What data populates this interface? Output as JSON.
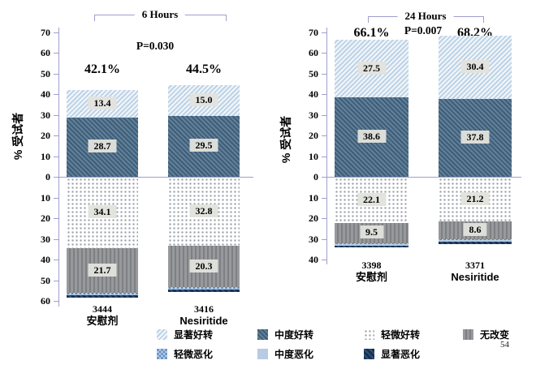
{
  "page_number": "54",
  "chart_data": {
    "type": "bar",
    "subtype": "diverging_stacked_bar",
    "ylabel": "% 受试者",
    "grid": false,
    "legend_position": "bottom",
    "panels": [
      {
        "title": "6 Hours",
        "p_value": "P=0.030",
        "axis": {
          "up_max": 70,
          "down_max": 60,
          "step": 10
        },
        "bars": [
          {
            "n": "3444",
            "group": "安慰剂",
            "total_improved": "42.1%",
            "up": [
              {
                "name": "中度好转",
                "value": 28.7,
                "label": "28.7"
              },
              {
                "name": "显著好转",
                "value": 13.4,
                "label": "13.4"
              }
            ],
            "down": [
              {
                "name": "轻微好转",
                "value": 34.1,
                "label": "34.1"
              },
              {
                "name": "无改变",
                "value": 21.7,
                "label": "21.7"
              },
              {
                "name": "轻微恶化",
                "value": 0.5
              },
              {
                "name": "中度恶化",
                "value": 0.5
              },
              {
                "name": "显著恶化",
                "value": 1.0
              }
            ]
          },
          {
            "n": "3416",
            "group": "Nesiritide",
            "total_improved": "44.5%",
            "up": [
              {
                "name": "中度好转",
                "value": 29.5,
                "label": "29.5"
              },
              {
                "name": "显著好转",
                "value": 15.0,
                "label": "15.0"
              }
            ],
            "down": [
              {
                "name": "轻微好转",
                "value": 32.8,
                "label": "32.8"
              },
              {
                "name": "无改变",
                "value": 20.3,
                "label": "20.3"
              },
              {
                "name": "轻微恶化",
                "value": 0.5
              },
              {
                "name": "中度恶化",
                "value": 0.5
              },
              {
                "name": "显著恶化",
                "value": 1.0
              }
            ]
          }
        ]
      },
      {
        "title": "24 Hours",
        "p_value": "P=0.007",
        "axis": {
          "up_max": 70,
          "down_max": 40,
          "step": 10
        },
        "bars": [
          {
            "n": "3398",
            "group": "安慰剂",
            "total_improved": "66.1%",
            "up": [
              {
                "name": "中度好转",
                "value": 38.6,
                "label": "38.6"
              },
              {
                "name": "显著好转",
                "value": 27.5,
                "label": "27.5"
              }
            ],
            "down": [
              {
                "name": "轻微好转",
                "value": 22.1,
                "label": "22.1"
              },
              {
                "name": "无改变",
                "value": 9.5,
                "label": "9.5"
              },
              {
                "name": "轻微恶化",
                "value": 0.4
              },
              {
                "name": "中度恶化",
                "value": 0.6
              },
              {
                "name": "显著恶化",
                "value": 1.0
              }
            ]
          },
          {
            "n": "3371",
            "group": "Nesiritide",
            "total_improved": "68.2%",
            "up": [
              {
                "name": "中度好转",
                "value": 37.8,
                "label": "37.8"
              },
              {
                "name": "显著好转",
                "value": 30.4,
                "label": "30.4"
              }
            ],
            "down": [
              {
                "name": "轻微好转",
                "value": 21.2,
                "label": "21.2"
              },
              {
                "name": "无改变",
                "value": 8.6,
                "label": "8.6"
              },
              {
                "name": "轻微恶化",
                "value": 0.4
              },
              {
                "name": "中度恶化",
                "value": 0.6
              },
              {
                "name": "显著恶化",
                "value": 1.0
              }
            ]
          }
        ]
      }
    ],
    "legend": [
      "显著好转",
      "中度好转",
      "轻微好转",
      "无改变",
      "轻微恶化",
      "中度恶化",
      "显著恶化"
    ],
    "colors": {
      "显著好转": "#cfe0ee",
      "中度好转": "#4a6880",
      "轻微好转": "#ffffff",
      "无改变": "#8d8e90",
      "轻微恶化": "#5b8ac2",
      "中度恶化": "#b7cbe2",
      "显著恶化": "#1e3a5c",
      "axis": "#9f9fd0"
    }
  }
}
